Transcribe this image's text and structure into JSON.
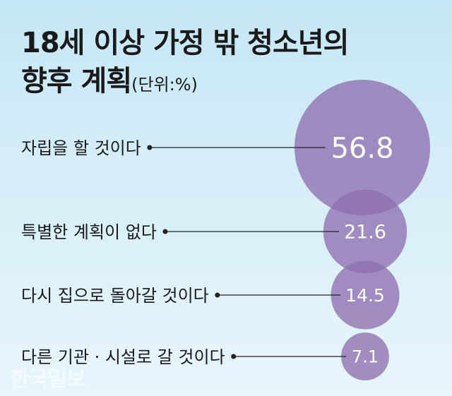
{
  "title_line1": "18세 이상 가정 밖 청소년의",
  "title_line2": "향후 계획",
  "unit": "(단위:%)",
  "watermark": "한국일보",
  "colors": {
    "bubble": "#8e6fb0",
    "bubble_stroke": "#7a5aa0",
    "value_text": "#ffffff",
    "label_text": "#1a1a1a",
    "leader_line": "#222222"
  },
  "chart_data": {
    "type": "bubble",
    "categories": [
      "자립을 할 것이다",
      "특별한 계획이 없다",
      "다시 집으로 돌아갈 것이다",
      "다른 기관 · 시설로 갈 것이다"
    ],
    "values": [
      56.8,
      21.6,
      14.5,
      7.1
    ],
    "value_labels": [
      "56.8",
      "21.6",
      "14.5",
      "7.1"
    ],
    "title": "18세 이상 가정 밖 청소년의 향후 계획",
    "unit": "%"
  }
}
